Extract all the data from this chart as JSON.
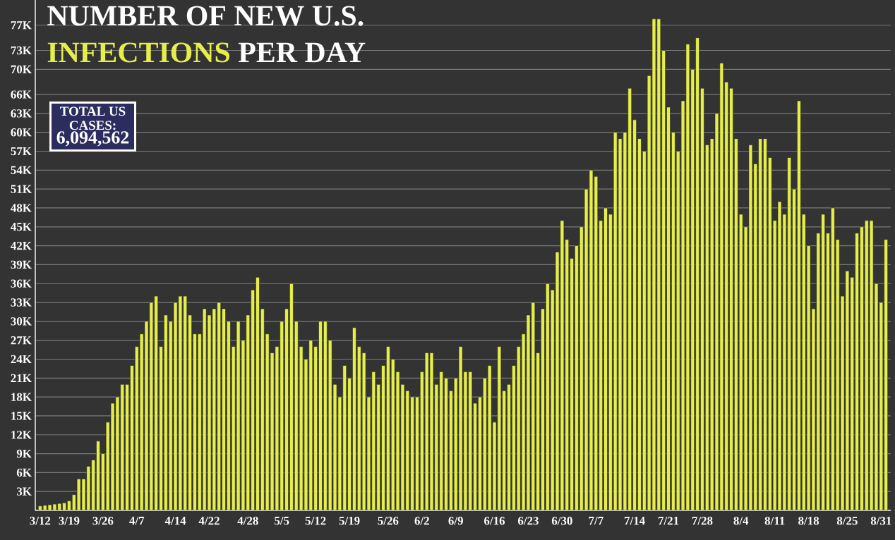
{
  "chart_data": {
    "type": "bar",
    "title": "NUMBER OF NEW U.S.",
    "subtitle": "**INFECTIONS** PER DAY",
    "annotations": [
      "TOTAL US CASES:",
      "6,094,562"
    ],
    "categories": [
      "3/12",
      null,
      null,
      null,
      null,
      null,
      "3/19",
      null,
      null,
      null,
      null,
      null,
      null,
      "3/26",
      null,
      null,
      null,
      null,
      null,
      null,
      "4/7",
      null,
      null,
      null,
      null,
      null,
      null,
      null,
      "4/14",
      null,
      null,
      null,
      null,
      null,
      null,
      "4/22",
      null,
      null,
      null,
      null,
      null,
      null,
      null,
      "4/28",
      null,
      null,
      null,
      null,
      null,
      null,
      "5/5",
      null,
      null,
      null,
      null,
      null,
      null,
      "5/12",
      null,
      null,
      null,
      null,
      null,
      null,
      "5/19",
      null,
      null,
      null,
      null,
      null,
      null,
      null,
      "5/26",
      null,
      null,
      null,
      null,
      null,
      null,
      "6/2",
      null,
      null,
      null,
      null,
      null,
      null,
      "6/9",
      null,
      null,
      null,
      null,
      null,
      null,
      null,
      "6/16",
      null,
      null,
      null,
      null,
      null,
      null,
      "6/23",
      null,
      null,
      null,
      null,
      null,
      null,
      "6/30",
      null,
      null,
      null,
      null,
      null,
      null,
      "7/7",
      null,
      null,
      null,
      null,
      null,
      null,
      null,
      "7/14",
      null,
      null,
      null,
      null,
      null,
      null,
      "7/21",
      null,
      null,
      null,
      null,
      null,
      null,
      "7/28",
      null,
      null,
      null,
      null,
      null,
      null,
      null,
      "8/4",
      null,
      null,
      null,
      null,
      null,
      null,
      "8/11",
      null,
      null,
      null,
      null,
      null,
      null,
      "8/18",
      null,
      null,
      null,
      null,
      null,
      null,
      null,
      "8/25",
      null,
      null,
      null,
      null,
      null,
      null,
      "8/31",
      null
    ],
    "values": [
      0.7,
      0.8,
      0.9,
      1,
      1.1,
      1.2,
      1.5,
      2.5,
      5,
      5,
      7,
      8,
      11,
      9,
      14,
      17,
      18,
      20,
      20,
      23,
      26,
      28,
      30,
      33,
      34,
      26,
      31,
      30,
      33,
      34,
      34,
      31,
      28,
      28,
      32,
      31,
      32,
      33,
      32,
      30,
      26,
      30,
      27,
      31,
      35,
      37,
      32,
      28,
      25,
      26,
      30,
      32,
      36,
      30,
      26,
      24,
      27,
      26,
      30,
      30,
      27,
      20,
      18,
      23,
      21,
      29,
      26,
      25,
      18,
      22,
      20,
      23,
      26,
      24,
      22,
      20,
      19,
      18,
      18,
      22,
      25,
      25,
      20,
      22,
      21,
      19,
      21,
      26,
      22,
      22,
      17,
      18,
      21,
      23,
      14,
      26,
      19,
      20,
      23,
      26,
      28,
      31,
      33,
      25,
      32,
      36,
      35,
      41,
      46,
      43,
      40,
      42,
      45,
      51,
      54,
      53,
      46,
      48,
      47,
      60,
      59,
      60,
      67,
      62,
      59,
      57,
      69,
      78,
      78,
      73,
      64,
      60,
      57,
      65,
      74,
      70,
      75,
      67,
      58,
      59,
      63,
      71,
      68,
      67,
      59,
      47,
      45,
      58,
      55,
      59,
      59,
      56,
      46,
      49,
      47,
      56,
      51,
      65,
      47,
      42,
      32,
      44,
      47,
      44,
      48,
      43,
      34,
      38,
      37,
      44,
      45,
      46,
      46,
      36,
      33,
      43
    ],
    "color": "#e6ef4a",
    "ylim": [
      0,
      81
    ],
    "yticks": [
      {
        "value": 3,
        "label": "3K"
      },
      {
        "value": 6,
        "label": "6K"
      },
      {
        "value": 9,
        "label": "9K"
      },
      {
        "value": 12,
        "label": "12K"
      },
      {
        "value": 15,
        "label": "15K"
      },
      {
        "value": 18,
        "label": "18K"
      },
      {
        "value": 21,
        "label": "21K"
      },
      {
        "value": 24,
        "label": "24K"
      },
      {
        "value": 27,
        "label": "27K"
      },
      {
        "value": 30,
        "label": "30K"
      },
      {
        "value": 33,
        "label": "33K"
      },
      {
        "value": 36,
        "label": "36K"
      },
      {
        "value": 39,
        "label": "39K"
      },
      {
        "value": 42,
        "label": "42K"
      },
      {
        "value": 45,
        "label": "45K"
      },
      {
        "value": 48,
        "label": "48K"
      },
      {
        "value": 51,
        "label": "51K"
      },
      {
        "value": 54,
        "label": "54K"
      },
      {
        "value": 57,
        "label": "57K"
      },
      {
        "value": 60,
        "label": "60K"
      },
      {
        "value": 63,
        "label": "63K"
      },
      {
        "value": 66,
        "label": "66K"
      },
      {
        "value": 70,
        "label": "70K"
      },
      {
        "value": 73,
        "label": "73K"
      },
      {
        "value": 77,
        "label": "77K"
      }
    ],
    "grid": "y"
  }
}
